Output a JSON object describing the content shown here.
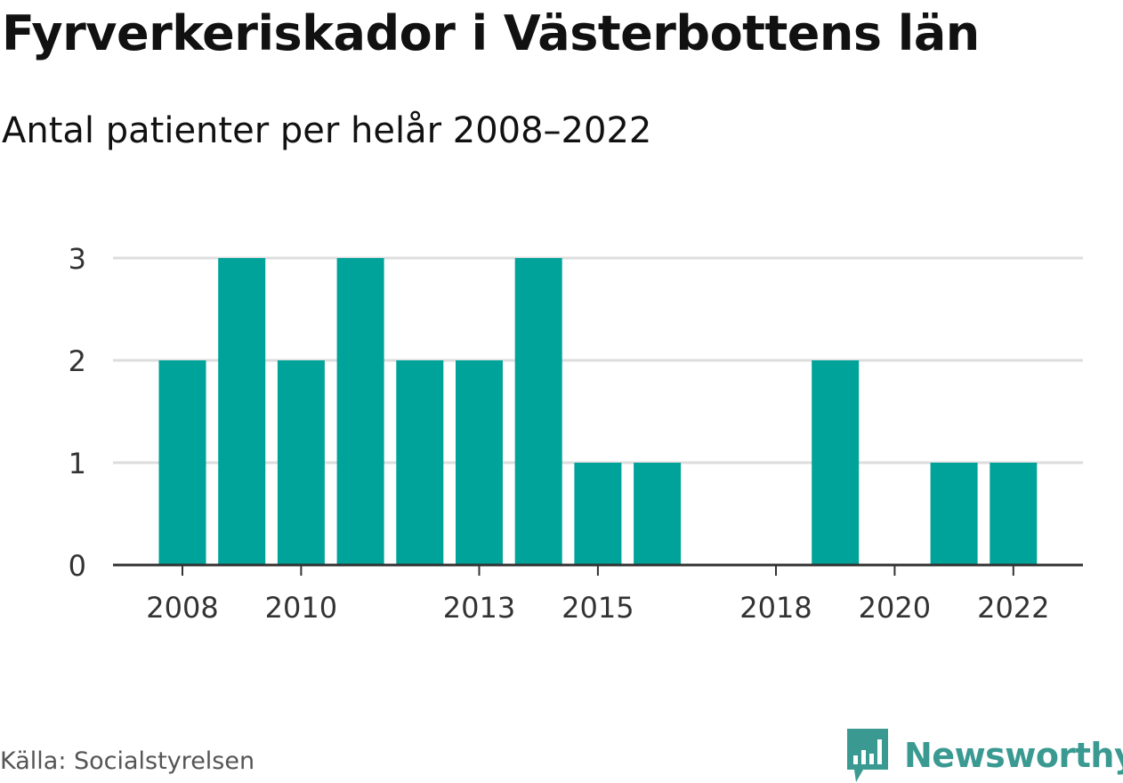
{
  "title": "Fyrverkeriskador i Västerbottens län",
  "subtitle": "Antal patienter per helår 2008–2022",
  "source": "Källa: Socialstyrelsen",
  "brand": "Newsworthy",
  "colors": {
    "bar": "#00a39a",
    "grid": "#dddddd",
    "axis": "#333333",
    "brand": "#3a9a92"
  },
  "chart_data": {
    "type": "bar",
    "categories": [
      "2008",
      "2009",
      "2010",
      "2011",
      "2012",
      "2013",
      "2014",
      "2015",
      "2016",
      "2017",
      "2018",
      "2019",
      "2020",
      "2021",
      "2022"
    ],
    "values": [
      2,
      3,
      2,
      3,
      2,
      2,
      3,
      1,
      1,
      0,
      0,
      2,
      0,
      1,
      1
    ],
    "x_tick_labels": [
      "2008",
      "2010",
      "2013",
      "2015",
      "2018",
      "2020",
      "2022"
    ],
    "y_ticks": [
      0,
      1,
      2,
      3
    ],
    "ylim": [
      0,
      3
    ],
    "grid": true
  }
}
